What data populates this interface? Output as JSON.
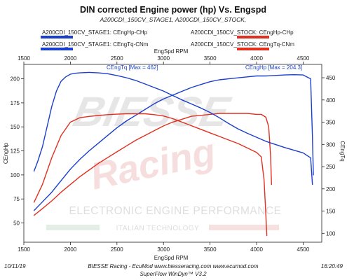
{
  "header": {
    "title": "DIN corrected Engine power (hp) Vs. Engspd",
    "subtitle": "A200CDI_150CV_STAGE1, A200CDI_150CV_STOCK,"
  },
  "legend": [
    {
      "label": "A200CDI_150CV_STAGE1: CEngHp-CHp",
      "color": "#1a3fcc"
    },
    {
      "label": "A200CDI_150CV_STOCK: CEngHp-CHp",
      "color": "#e03020"
    },
    {
      "label": "A200CDI_150CV_STAGE1: CEngTq-CNm",
      "color": "#1a3fcc"
    },
    {
      "label": "A200CDI_150CV_STOCK: CEngTq-CNm",
      "color": "#e03020"
    }
  ],
  "watermark": {
    "brand": "BIESSE",
    "script": "Racing",
    "line1": "ELECTRONIC ENGINE PERFORMANCE",
    "line2": "ITALIAN TECHNOLOGY"
  },
  "annotations": {
    "tq_max": "CEngTq [Max = 462]",
    "hp_max": "CEngHp [Max = 204.3]"
  },
  "footer": {
    "date": "10/11/19",
    "time": "16:20:49",
    "company": "BIESSE Racing - EcuMod www.biesseracing.com www.ecumod.com",
    "software": "SuperFlow WinDyn™ V3.2"
  },
  "chart_data": {
    "type": "line",
    "title": "DIN corrected Engine power (hp) Vs. Engspd",
    "xlabel": "EngSpd RPM",
    "ylabel": "CEngHp",
    "y2label": "CEngTq",
    "xlim": [
      1500,
      4700
    ],
    "ylim": [
      30,
      215
    ],
    "y2lim": [
      80,
      480
    ],
    "xticks": [
      1500,
      2000,
      2500,
      3000,
      3500,
      4000,
      4500
    ],
    "yticks": [
      50,
      75,
      100,
      125,
      150,
      175,
      200
    ],
    "y2ticks": [
      100,
      150,
      200,
      250,
      300,
      350,
      400,
      450
    ],
    "grid": false,
    "series": [
      {
        "name": "A200CDI_150CV_STAGE1: CEngHp-CHp",
        "color": "#1a3fcc",
        "axis": "left",
        "x": [
          1610,
          1700,
          1800,
          1900,
          2000,
          2100,
          2200,
          2300,
          2400,
          2500,
          2600,
          2700,
          2800,
          2900,
          3000,
          3100,
          3200,
          3300,
          3400,
          3500,
          3600,
          3700,
          3800,
          3900,
          4000,
          4100,
          4200,
          4300,
          4400,
          4500,
          4580,
          4600,
          4610
        ],
        "y": [
          63,
          72,
          82,
          94,
          106,
          116,
          125,
          133,
          141,
          149,
          156,
          162,
          168,
          174,
          179,
          183,
          187,
          191,
          194,
          197,
          199,
          200,
          201,
          202,
          203,
          203,
          203.5,
          204,
          204.3,
          204,
          200,
          140,
          100
        ]
      },
      {
        "name": "A200CDI_150CV_STOCK: CEngHp-CHp",
        "color": "#e03020",
        "axis": "left",
        "x": [
          1610,
          1700,
          1800,
          1900,
          2000,
          2100,
          2200,
          2300,
          2400,
          2500,
          2600,
          2700,
          2800,
          2900,
          3000,
          3100,
          3200,
          3300,
          3400,
          3500,
          3600,
          3700,
          3800,
          3900,
          4000,
          4050,
          4100,
          4130,
          4150,
          4160
        ],
        "y": [
          58,
          65,
          73,
          82,
          90,
          98,
          105,
          112,
          118,
          124,
          130,
          136,
          141,
          146,
          151,
          155,
          158,
          161,
          162,
          163,
          164,
          164,
          164,
          164,
          163,
          163,
          160,
          150,
          120,
          90
        ]
      },
      {
        "name": "A200CDI_150CV_STAGE1: CEngTq-CNm",
        "color": "#1a3fcc",
        "axis": "right",
        "x": [
          1610,
          1650,
          1700,
          1750,
          1800,
          1850,
          1900,
          1950,
          2000,
          2050,
          2100,
          2200,
          2300,
          2400,
          2500,
          2600,
          2700,
          2800,
          2900,
          3000,
          3100,
          3200,
          3300,
          3400,
          3500,
          3600,
          3700,
          3800,
          3900,
          4000,
          4100,
          4200,
          4300,
          4400,
          4500,
          4580,
          4600
        ],
        "y": [
          240,
          262,
          295,
          340,
          385,
          420,
          442,
          452,
          458,
          460,
          461,
          462,
          461,
          459,
          455,
          450,
          444,
          436,
          428,
          420,
          410,
          400,
          391,
          382,
          372,
          360,
          347,
          335,
          325,
          316,
          307,
          300,
          293,
          287,
          281,
          270,
          210
        ]
      },
      {
        "name": "A200CDI_150CV_STOCK: CEngTq-CNm",
        "color": "#e03020",
        "axis": "right",
        "x": [
          1610,
          1700,
          1800,
          1900,
          2000,
          2100,
          2200,
          2300,
          2400,
          2500,
          2600,
          2700,
          2800,
          2900,
          3000,
          3100,
          3200,
          3300,
          3400,
          3500,
          3600,
          3700,
          3800,
          3900,
          4000,
          4050,
          4080,
          4100,
          4110
        ],
        "y": [
          170,
          210,
          270,
          320,
          350,
          360,
          363,
          365,
          367,
          368,
          369,
          369,
          369,
          367,
          364,
          358,
          350,
          342,
          334,
          326,
          318,
          310,
          302,
          292,
          282,
          272,
          220,
          140,
          95
        ]
      }
    ]
  }
}
